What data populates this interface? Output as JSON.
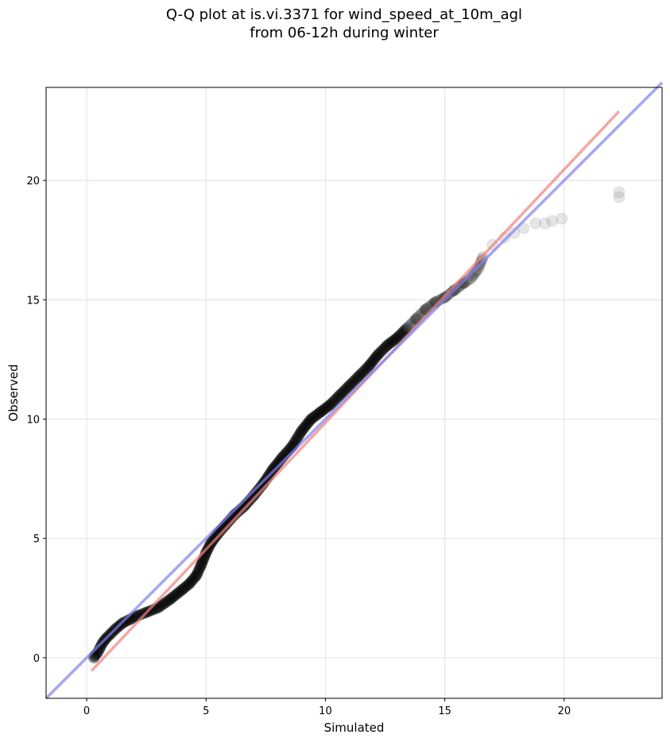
{
  "chart_data": {
    "type": "scatter",
    "title": "Q-Q plot at is.vi.3371 for wind_speed_at_10m_agl",
    "subtitle": "from 06-12h during winter",
    "xlabel": "Simulated",
    "ylabel": "Observed",
    "xlim": [
      -1.7,
      24.1
    ],
    "ylim": [
      -1.7,
      23.9
    ],
    "xticks": [
      0,
      5,
      10,
      15,
      20
    ],
    "yticks": [
      0,
      5,
      10,
      15,
      20
    ],
    "grid": true,
    "point_color": "#000000",
    "quantiles": {
      "x": [
        0.3,
        0.35,
        0.45,
        0.55,
        0.65,
        0.8,
        1.0,
        1.2,
        1.5,
        1.8,
        2.1,
        2.5,
        3.0,
        3.5,
        4.0,
        4.3,
        4.6,
        4.8,
        5.0,
        5.2,
        5.5,
        5.8,
        6.2,
        6.6,
        7.0,
        7.4,
        7.8,
        8.2,
        8.6,
        9.0,
        9.4,
        9.8,
        10.2,
        10.6,
        11.0,
        11.4,
        11.8,
        12.2,
        12.6,
        13.0,
        13.4,
        13.8,
        14.2,
        14.6,
        15.0,
        15.4,
        15.8,
        16.1,
        16.4,
        16.6,
        17.0,
        17.5,
        17.9,
        18.3,
        18.8,
        19.2,
        19.5,
        19.9,
        22.3,
        22.3
      ],
      "y": [
        0.0,
        0.1,
        0.2,
        0.4,
        0.6,
        0.8,
        1.0,
        1.2,
        1.45,
        1.6,
        1.75,
        1.9,
        2.1,
        2.45,
        2.85,
        3.1,
        3.45,
        3.9,
        4.4,
        4.8,
        5.2,
        5.55,
        6.0,
        6.35,
        6.8,
        7.3,
        7.9,
        8.4,
        8.85,
        9.5,
        10.0,
        10.3,
        10.6,
        11.0,
        11.4,
        11.8,
        12.2,
        12.7,
        13.1,
        13.4,
        13.8,
        14.2,
        14.6,
        14.9,
        15.1,
        15.4,
        15.7,
        15.9,
        16.3,
        16.8,
        17.3,
        17.6,
        17.8,
        18.0,
        18.2,
        18.2,
        18.3,
        18.4,
        19.3,
        19.5
      ]
    },
    "series": [
      {
        "type": "line",
        "color": "#f08080",
        "x": [
          0.2,
          22.3
        ],
        "y": [
          -0.55,
          22.9
        ]
      },
      {
        "type": "line",
        "color": "#8080f0",
        "x": [
          -1.7,
          24.1
        ],
        "y": [
          -1.7,
          24.1
        ]
      }
    ]
  }
}
